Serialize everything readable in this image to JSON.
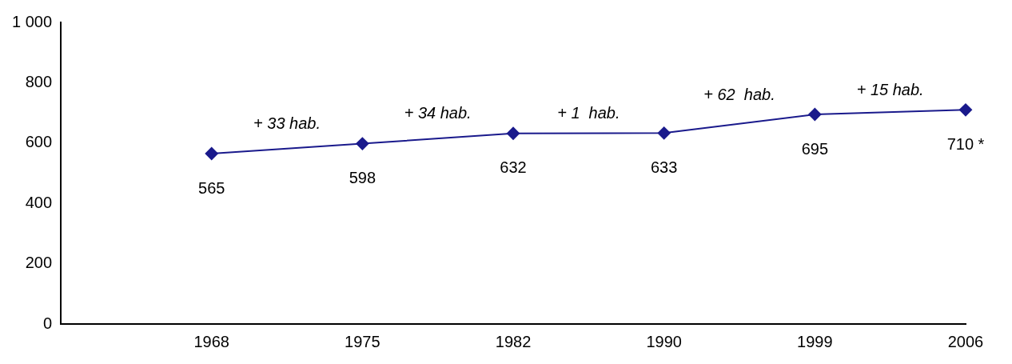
{
  "chart_data": {
    "type": "line",
    "categories": [
      null,
      "1968",
      "1975",
      "1982",
      "1990",
      "1999",
      "2006"
    ],
    "series": [
      {
        "color": "#1a1a8c",
        "values": [
          null,
          565,
          598,
          632,
          633,
          695,
          710
        ],
        "value_labels": [
          null,
          "565",
          "598",
          "632",
          "633",
          "695",
          "710 *"
        ]
      }
    ],
    "ylim": [
      0,
      1000
    ],
    "yticks": [
      0,
      200,
      400,
      600,
      800,
      {
        "value": 1000,
        "label": "1 000"
      }
    ],
    "grid": false,
    "legend": false,
    "marker": "diamond",
    "line_style": "solid",
    "annotations": [
      "+ 33 hab.",
      "+ 34 hab.",
      "+ 1  hab.",
      "+ 62  hab.",
      "+ 15 hab."
    ]
  }
}
